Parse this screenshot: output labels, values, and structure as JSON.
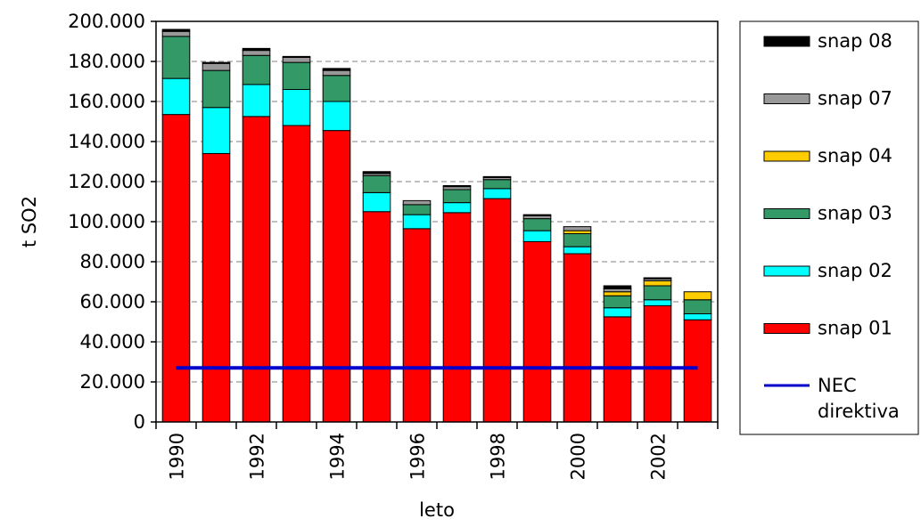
{
  "chart_data": {
    "type": "bar",
    "stacked": true,
    "xlabel": "leto",
    "ylabel": "t SO2",
    "ylim": [
      0,
      200000
    ],
    "y_ticks": [
      "0",
      "20.000",
      "40.000",
      "60.000",
      "80.000",
      "100.000",
      "120.000",
      "140.000",
      "160.000",
      "180.000",
      "200.000"
    ],
    "grid": "horizontal dashed",
    "legend_position": "right",
    "categories": [
      1990,
      1991,
      1992,
      1993,
      1994,
      1995,
      1996,
      1997,
      1998,
      1999,
      2000,
      2001,
      2002,
      2003
    ],
    "x_tick_labels": [
      "1990",
      "1992",
      "1994",
      "1996",
      "1998",
      "2000",
      "2002"
    ],
    "series": [
      {
        "name": "snap 01",
        "color": "#ff0000",
        "values": [
          153500,
          134000,
          152500,
          148000,
          145500,
          105000,
          96500,
          104500,
          111500,
          90000,
          84000,
          52500,
          58000,
          51000
        ]
      },
      {
        "name": "snap 02",
        "color": "#00ffff",
        "values": [
          18000,
          23000,
          16000,
          18000,
          14500,
          9500,
          7000,
          5000,
          5000,
          5500,
          3500,
          4500,
          3000,
          3000
        ]
      },
      {
        "name": "snap 03",
        "color": "#339966",
        "values": [
          21000,
          18500,
          14500,
          13500,
          13000,
          8500,
          5000,
          6500,
          4500,
          6000,
          6500,
          6000,
          7000,
          7000
        ]
      },
      {
        "name": "snap 04",
        "color": "#ffcc00",
        "values": [
          0,
          0,
          0,
          0,
          0,
          0,
          0,
          0,
          0,
          0,
          1500,
          2000,
          2500,
          4000
        ]
      },
      {
        "name": "snap 07",
        "color": "#999999",
        "values": [
          2500,
          3500,
          2500,
          2500,
          2500,
          1000,
          2000,
          1500,
          1000,
          1500,
          2000,
          1500,
          1000,
          0
        ]
      },
      {
        "name": "snap 08",
        "color": "#000000",
        "values": [
          1000,
          500,
          1000,
          500,
          1000,
          1000,
          0,
          500,
          500,
          500,
          0,
          1500,
          500,
          0
        ]
      }
    ],
    "line": {
      "name": "NEC direktiva",
      "name_lines": [
        "NEC",
        "direktiva"
      ],
      "color": "#0000cc",
      "value": 27000
    }
  }
}
